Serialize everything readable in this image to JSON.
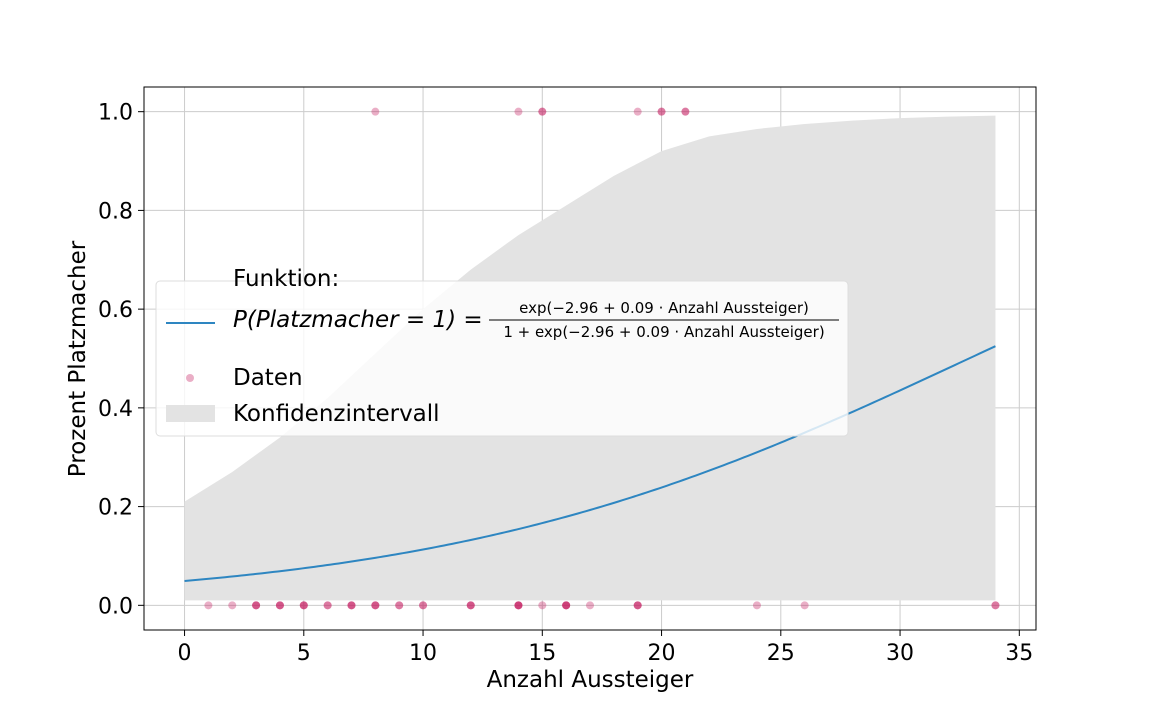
{
  "chart_data": {
    "type": "scatter",
    "xlabel": "Anzahl Aussteiger",
    "ylabel": "Prozent Platzmacher",
    "xlim": [
      -1.7,
      35.7
    ],
    "ylim": [
      -0.05,
      1.05
    ],
    "xticks": [
      0,
      5,
      10,
      15,
      20,
      25,
      30,
      35
    ],
    "yticks": [
      0.0,
      0.2,
      0.4,
      0.6,
      0.8,
      1.0
    ],
    "xtick_labels": [
      "0",
      "5",
      "10",
      "15",
      "20",
      "25",
      "30",
      "35"
    ],
    "ytick_labels": [
      "0.0",
      "0.2",
      "0.4",
      "0.6",
      "0.8",
      "1.0"
    ],
    "grid": true,
    "legend": {
      "placement": "center-left",
      "title": "Funktion:",
      "entries": [
        {
          "kind": "line",
          "lhs": "P(Platzmacher = 1) = ",
          "numerator": "exp(−2.96 + 0.09 · Anzahl Aussteiger)",
          "denominator": "1 + exp(−2.96 + 0.09 · Anzahl Aussteiger)"
        },
        {
          "kind": "points",
          "label": "Daten"
        },
        {
          "kind": "band",
          "label": "Konfidenzintervall"
        }
      ]
    },
    "colors": {
      "line": "#2e86c1",
      "points": "#c2185b",
      "band": "#e3e3e3"
    },
    "curve": {
      "intercept": -2.96,
      "slope": 0.09,
      "x_range": [
        0,
        34
      ]
    },
    "confidence_band": {
      "x": [
        0,
        2,
        4,
        6,
        8,
        10,
        12,
        14,
        16,
        18,
        20,
        22,
        24,
        26,
        28,
        30,
        32,
        34
      ],
      "upper": [
        0.21,
        0.27,
        0.34,
        0.42,
        0.51,
        0.6,
        0.68,
        0.75,
        0.81,
        0.87,
        0.92,
        0.95,
        0.965,
        0.975,
        0.982,
        0.987,
        0.99,
        0.992
      ],
      "lower": [
        0.01,
        0.01,
        0.01,
        0.01,
        0.01,
        0.01,
        0.01,
        0.01,
        0.01,
        0.01,
        0.01,
        0.01,
        0.01,
        0.01,
        0.01,
        0.01,
        0.01,
        0.01
      ]
    },
    "points": [
      {
        "x": 1,
        "y": 0,
        "n": 1
      },
      {
        "x": 2,
        "y": 0,
        "n": 1
      },
      {
        "x": 3,
        "y": 0,
        "n": 3
      },
      {
        "x": 4,
        "y": 0,
        "n": 3
      },
      {
        "x": 5,
        "y": 0,
        "n": 3
      },
      {
        "x": 6,
        "y": 0,
        "n": 2
      },
      {
        "x": 7,
        "y": 0,
        "n": 3
      },
      {
        "x": 8,
        "y": 0,
        "n": 3
      },
      {
        "x": 9,
        "y": 0,
        "n": 2
      },
      {
        "x": 10,
        "y": 0,
        "n": 2
      },
      {
        "x": 12,
        "y": 0,
        "n": 3
      },
      {
        "x": 14,
        "y": 0,
        "n": 4
      },
      {
        "x": 15,
        "y": 0,
        "n": 1
      },
      {
        "x": 16,
        "y": 0,
        "n": 4
      },
      {
        "x": 17,
        "y": 0,
        "n": 1
      },
      {
        "x": 19,
        "y": 0,
        "n": 3
      },
      {
        "x": 24,
        "y": 0,
        "n": 1
      },
      {
        "x": 26,
        "y": 0,
        "n": 1
      },
      {
        "x": 34,
        "y": 0,
        "n": 2
      },
      {
        "x": 8,
        "y": 1,
        "n": 1
      },
      {
        "x": 14,
        "y": 1,
        "n": 1
      },
      {
        "x": 15,
        "y": 1,
        "n": 2
      },
      {
        "x": 19,
        "y": 1,
        "n": 1
      },
      {
        "x": 20,
        "y": 1,
        "n": 2
      },
      {
        "x": 21,
        "y": 1,
        "n": 2
      }
    ]
  }
}
